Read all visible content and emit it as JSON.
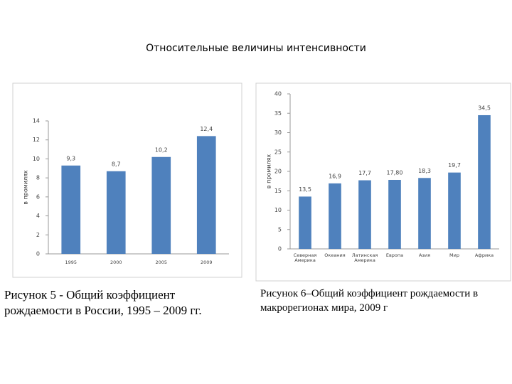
{
  "title": "Относительные величины интенсивности",
  "chart_data": [
    {
      "type": "bar",
      "categories": [
        "1995",
        "2000",
        "2005",
        "2009"
      ],
      "values": [
        9.3,
        8.7,
        10.2,
        12.4
      ],
      "value_labels": [
        "9,3",
        "8,7",
        "10,2",
        "12,4"
      ],
      "color": "#4f81bd",
      "ylabel": "в промилях",
      "ylim": [
        0,
        14
      ],
      "yticks": [
        0,
        2,
        4,
        6,
        8,
        10,
        12,
        14
      ],
      "caption": "Рисунок 5 - Общий коэффициент рождаемости в России, 1995 – 2009 гг."
    },
    {
      "type": "bar",
      "categories": [
        "Северная Америка",
        "Океания",
        "Латинская Америка",
        "Европа",
        "Азия",
        "Мир",
        "Африка"
      ],
      "values": [
        13.5,
        16.9,
        17.7,
        17.8,
        18.3,
        19.7,
        34.5
      ],
      "value_labels": [
        "13,5",
        "16,9",
        "17,7",
        "17,80",
        "18,3",
        "19,7",
        "34,5"
      ],
      "color": "#4f81bd",
      "ylabel": "в промилях",
      "ylim": [
        0,
        40
      ],
      "yticks": [
        0,
        5,
        10,
        15,
        20,
        25,
        30,
        35,
        40
      ],
      "caption": "Рисунок 6–Общий коэффициент рождаемости в макрорегионах мира, 2009 г"
    }
  ]
}
